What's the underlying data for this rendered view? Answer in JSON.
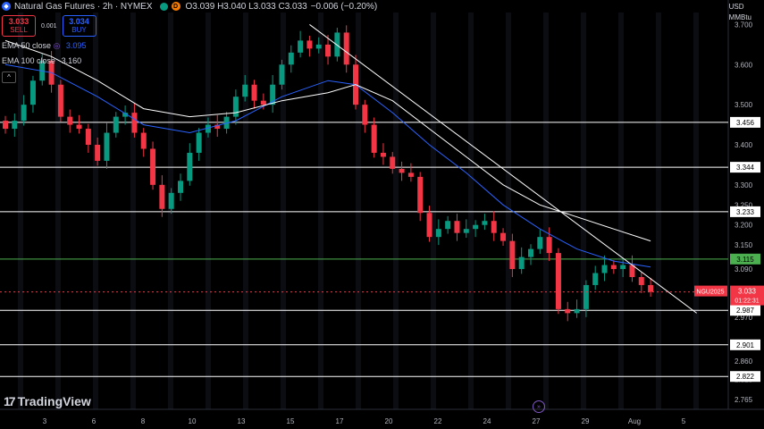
{
  "header": {
    "title": "Natural Gas Futures · 2h · NYMEX",
    "ohlc": "O3.039 H3.040 L3.033 C3.033",
    "change": "−0.006 (−0.20%)",
    "symbol_icon": "flame-icon",
    "status_dot_label": "D"
  },
  "trade": {
    "sell_price": "3.033",
    "sell_label": "SELL",
    "spread": "0.001",
    "buy_price": "3.034",
    "buy_label": "BUY"
  },
  "indicators": [
    {
      "label": "EMA 50 close",
      "value": "3.095",
      "color": "#2962ff"
    },
    {
      "label": "EMA 100 close",
      "value": "3.160",
      "color": "#ffffff"
    }
  ],
  "collapse_glyph": "^",
  "scale": {
    "currency": "USD",
    "unit": "MMBtu"
  },
  "logo": {
    "text": "TradingView",
    "mark": "17"
  },
  "chart_data": {
    "type": "candlestick",
    "symbol": "NGU2025",
    "timeframe": "2h",
    "yaxis_ticks": [
      "3.700",
      "3.600",
      "3.500",
      "3.400",
      "3.300",
      "3.250",
      "3.200",
      "3.150",
      "3.090",
      "3.040",
      "2.970",
      "2.860",
      "2.815",
      "2.765"
    ],
    "ylim": [
      2.74,
      3.73
    ],
    "xaxis_ticks": [
      "3",
      "6",
      "8",
      "10",
      "13",
      "15",
      "17",
      "20",
      "22",
      "24",
      "27",
      "29",
      "Aug",
      "5"
    ],
    "horizontal_levels": [
      {
        "value": 3.456,
        "label": "3.456",
        "color": "#ffffff"
      },
      {
        "value": 3.344,
        "label": "3.344",
        "color": "#ffffff"
      },
      {
        "value": 3.233,
        "label": "3.233",
        "color": "#ffffff"
      },
      {
        "value": 3.115,
        "label": "3.115",
        "color": "#4caf50"
      },
      {
        "value": 2.987,
        "label": "2.987",
        "color": "#ffffff"
      },
      {
        "value": 2.901,
        "label": "2.901",
        "color": "#ffffff"
      },
      {
        "value": 2.822,
        "label": "2.822",
        "color": "#ffffff"
      }
    ],
    "last_price": {
      "value": 3.033,
      "label": "3.033",
      "symbol": "NGU2025",
      "countdown": "01:22:31",
      "color": "#f23645"
    },
    "close_path": [
      [
        0,
        3.44
      ],
      [
        1,
        3.46
      ],
      [
        2,
        3.5
      ],
      [
        3,
        3.56
      ],
      [
        4,
        3.61
      ],
      [
        5,
        3.55
      ],
      [
        6,
        3.47
      ],
      [
        7,
        3.45
      ],
      [
        8,
        3.44
      ],
      [
        9,
        3.4
      ],
      [
        10,
        3.36
      ],
      [
        11,
        3.43
      ],
      [
        12,
        3.47
      ],
      [
        13,
        3.48
      ],
      [
        14,
        3.43
      ],
      [
        15,
        3.39
      ],
      [
        16,
        3.3
      ],
      [
        17,
        3.24
      ],
      [
        18,
        3.28
      ],
      [
        19,
        3.31
      ],
      [
        20,
        3.38
      ],
      [
        21,
        3.43
      ],
      [
        22,
        3.45
      ],
      [
        23,
        3.44
      ],
      [
        24,
        3.47
      ],
      [
        25,
        3.52
      ],
      [
        26,
        3.55
      ],
      [
        27,
        3.51
      ],
      [
        28,
        3.5
      ],
      [
        29,
        3.55
      ],
      [
        30,
        3.6
      ],
      [
        31,
        3.63
      ],
      [
        32,
        3.66
      ],
      [
        33,
        3.64
      ],
      [
        34,
        3.65
      ],
      [
        35,
        3.62
      ],
      [
        36,
        3.68
      ],
      [
        37,
        3.6
      ],
      [
        38,
        3.5
      ],
      [
        39,
        3.45
      ],
      [
        40,
        3.38
      ],
      [
        41,
        3.37
      ],
      [
        42,
        3.34
      ],
      [
        43,
        3.33
      ],
      [
        44,
        3.32
      ],
      [
        45,
        3.23
      ],
      [
        46,
        3.17
      ],
      [
        47,
        3.19
      ],
      [
        48,
        3.21
      ],
      [
        49,
        3.18
      ],
      [
        50,
        3.19
      ],
      [
        51,
        3.2
      ],
      [
        52,
        3.21
      ],
      [
        53,
        3.18
      ],
      [
        54,
        3.16
      ],
      [
        55,
        3.09
      ],
      [
        56,
        3.12
      ],
      [
        57,
        3.14
      ],
      [
        58,
        3.17
      ],
      [
        59,
        3.13
      ],
      [
        60,
        2.99
      ],
      [
        61,
        2.98
      ],
      [
        62,
        2.99
      ],
      [
        63,
        3.05
      ],
      [
        64,
        3.08
      ],
      [
        65,
        3.1
      ],
      [
        66,
        3.09
      ],
      [
        67,
        3.1
      ],
      [
        68,
        3.07
      ],
      [
        69,
        3.05
      ],
      [
        70,
        3.033
      ]
    ],
    "ema50_path": [
      [
        0,
        3.6
      ],
      [
        5,
        3.58
      ],
      [
        10,
        3.52
      ],
      [
        15,
        3.45
      ],
      [
        20,
        3.43
      ],
      [
        25,
        3.46
      ],
      [
        30,
        3.52
      ],
      [
        35,
        3.56
      ],
      [
        38,
        3.55
      ],
      [
        42,
        3.48
      ],
      [
        46,
        3.4
      ],
      [
        50,
        3.33
      ],
      [
        54,
        3.25
      ],
      [
        58,
        3.19
      ],
      [
        62,
        3.14
      ],
      [
        66,
        3.11
      ],
      [
        70,
        3.095
      ]
    ],
    "ema100_path": [
      [
        0,
        3.66
      ],
      [
        5,
        3.62
      ],
      [
        10,
        3.56
      ],
      [
        15,
        3.49
      ],
      [
        20,
        3.47
      ],
      [
        25,
        3.48
      ],
      [
        30,
        3.51
      ],
      [
        35,
        3.53
      ],
      [
        38,
        3.55
      ],
      [
        42,
        3.51
      ],
      [
        46,
        3.44
      ],
      [
        50,
        3.37
      ],
      [
        54,
        3.3
      ],
      [
        58,
        3.25
      ],
      [
        62,
        3.22
      ],
      [
        66,
        3.19
      ],
      [
        70,
        3.16
      ]
    ],
    "trendline": {
      "from": [
        33,
        3.7
      ],
      "to": [
        75,
        2.98
      ]
    }
  }
}
